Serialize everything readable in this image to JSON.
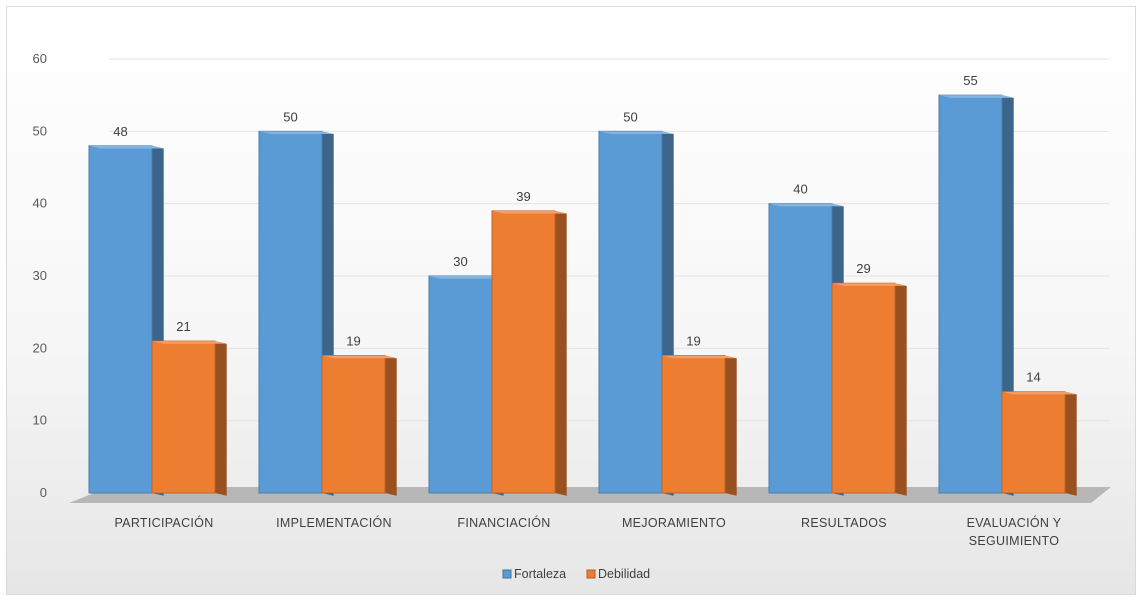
{
  "chart_data": {
    "type": "bar",
    "style": "3d-clustered-column",
    "categories": [
      "PARTICIPACIÓN",
      "IMPLEMENTACIÓN",
      "FINANCIACIÓN",
      "MEJORAMIENTO",
      "RESULTADOS",
      "EVALUACIÓN Y SEGUIMIENTO"
    ],
    "category_lines": [
      [
        "PARTICIPACIÓN"
      ],
      [
        "IMPLEMENTACIÓN"
      ],
      [
        "FINANCIACIÓN"
      ],
      [
        "MEJORAMIENTO"
      ],
      [
        "RESULTADOS"
      ],
      [
        "EVALUACIÓN Y",
        "SEGUIMIENTO"
      ]
    ],
    "series": [
      {
        "name": "Fortaleza",
        "values": [
          48,
          50,
          30,
          50,
          40,
          55
        ],
        "color": "#5b9bd5"
      },
      {
        "name": "Debilidad",
        "values": [
          21,
          19,
          39,
          19,
          29,
          14
        ],
        "color": "#ed7d31"
      }
    ],
    "yticks": [
      0,
      10,
      20,
      30,
      40,
      50,
      60
    ],
    "ylim": [
      0,
      60
    ],
    "title": "",
    "xlabel": "",
    "ylabel": "",
    "grid": true,
    "legend_position": "bottom",
    "data_labels": true
  }
}
